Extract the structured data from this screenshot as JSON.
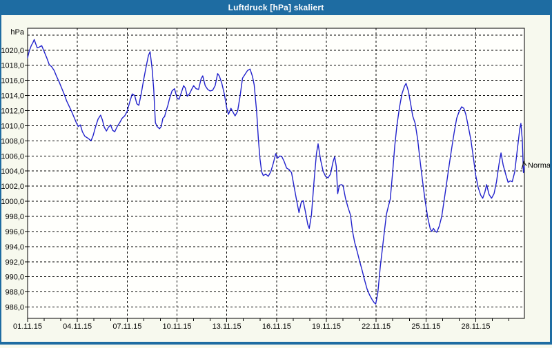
{
  "window": {
    "title": "Luftdruck [hPa] skaliert"
  },
  "colors": {
    "titlebar": "#1e6ca2",
    "window_border": "#1e6ca2",
    "content_bg": "#f7f9ee",
    "plot_bg": "#fffffc",
    "grid": "#000000",
    "axis": "#000000",
    "series_line": "#2222cc",
    "label_text": "#000000"
  },
  "chart_data": {
    "type": "line",
    "title": "Luftdruck [hPa] skaliert",
    "y_axis": {
      "unit_label": "hPa",
      "tick_values": [
        1020,
        1018,
        1016,
        1014,
        1012,
        1010,
        1008,
        1006,
        1004,
        1002,
        1000,
        998,
        996,
        994,
        992,
        990,
        988,
        986
      ],
      "tick_labels": [
        "1020,0",
        "1018,0",
        "1016,0",
        "1014,0",
        "1012,0",
        "1010,0",
        "1008,0",
        "1006,0",
        "1004,0",
        "1002,0",
        "1000,0",
        "998,0",
        "996,0",
        "994,0",
        "992,0",
        "990,0",
        "988,0",
        "986,0"
      ],
      "gridline_values": [
        1022,
        1020,
        1018,
        1016,
        1014,
        1012,
        1010,
        1008,
        1006,
        1004,
        1002,
        1000,
        998,
        996,
        994,
        992,
        990,
        988,
        986
      ],
      "ylim": [
        984.5,
        1022.9
      ],
      "grid": "dashed"
    },
    "x_axis": {
      "tick_label_days": [
        1,
        4,
        7,
        10,
        13,
        16,
        19,
        22,
        25,
        28
      ],
      "tick_labels": [
        "01.11.15",
        "04.11.15",
        "07.11.15",
        "10.11.15",
        "13.11.15",
        "16.11.15",
        "19.11.15",
        "22.11.15",
        "25.11.15",
        "28.11.15"
      ],
      "gridline_days": [
        4,
        7,
        10,
        13,
        16,
        19,
        22,
        25,
        28
      ],
      "minor_tick_every_days": 1,
      "xlim_days": [
        1,
        30.93
      ],
      "grid": "dashed"
    },
    "series": [
      {
        "name": "Normal",
        "end_label": "Normal",
        "color": "#2222cc",
        "points": [
          [
            1.0,
            1019.0
          ],
          [
            1.1,
            1019.9
          ],
          [
            1.22,
            1020.6
          ],
          [
            1.32,
            1021.0
          ],
          [
            1.4,
            1021.4
          ],
          [
            1.48,
            1020.9
          ],
          [
            1.58,
            1020.3
          ],
          [
            1.7,
            1020.4
          ],
          [
            1.85,
            1020.6
          ],
          [
            2.0,
            1019.8
          ],
          [
            2.15,
            1019.0
          ],
          [
            2.3,
            1018.1
          ],
          [
            2.45,
            1017.8
          ],
          [
            2.6,
            1017.3
          ],
          [
            2.75,
            1016.5
          ],
          [
            2.9,
            1015.8
          ],
          [
            3.05,
            1015.0
          ],
          [
            3.2,
            1014.2
          ],
          [
            3.35,
            1013.3
          ],
          [
            3.5,
            1012.6
          ],
          [
            3.65,
            1011.9
          ],
          [
            3.8,
            1011.1
          ],
          [
            3.95,
            1010.3
          ],
          [
            4.05,
            1009.9
          ],
          [
            4.18,
            1010.1
          ],
          [
            4.3,
            1009.2
          ],
          [
            4.45,
            1008.6
          ],
          [
            4.6,
            1008.4
          ],
          [
            4.72,
            1008.2
          ],
          [
            4.82,
            1008.0
          ],
          [
            4.95,
            1008.7
          ],
          [
            5.1,
            1009.9
          ],
          [
            5.25,
            1010.9
          ],
          [
            5.4,
            1011.4
          ],
          [
            5.5,
            1010.8
          ],
          [
            5.62,
            1009.8
          ],
          [
            5.75,
            1009.3
          ],
          [
            5.87,
            1009.8
          ],
          [
            6.0,
            1010.1
          ],
          [
            6.12,
            1009.4
          ],
          [
            6.25,
            1009.2
          ],
          [
            6.4,
            1009.9
          ],
          [
            6.55,
            1010.4
          ],
          [
            6.7,
            1011.0
          ],
          [
            6.85,
            1011.3
          ],
          [
            7.0,
            1011.9
          ],
          [
            7.15,
            1013.1
          ],
          [
            7.3,
            1014.2
          ],
          [
            7.45,
            1014.0
          ],
          [
            7.58,
            1012.9
          ],
          [
            7.7,
            1012.7
          ],
          [
            7.85,
            1014.3
          ],
          [
            8.0,
            1016.2
          ],
          [
            8.15,
            1017.9
          ],
          [
            8.28,
            1019.3
          ],
          [
            8.38,
            1019.8
          ],
          [
            8.5,
            1017.6
          ],
          [
            8.6,
            1014.8
          ],
          [
            8.7,
            1010.4
          ],
          [
            8.8,
            1009.9
          ],
          [
            8.95,
            1009.6
          ],
          [
            9.05,
            1009.9
          ],
          [
            9.15,
            1011.0
          ],
          [
            9.25,
            1011.2
          ],
          [
            9.35,
            1012.0
          ],
          [
            9.45,
            1012.7
          ],
          [
            9.55,
            1013.6
          ],
          [
            9.7,
            1014.6
          ],
          [
            9.85,
            1014.9
          ],
          [
            10.0,
            1013.7
          ],
          [
            10.12,
            1013.5
          ],
          [
            10.25,
            1014.3
          ],
          [
            10.4,
            1015.3
          ],
          [
            10.5,
            1015.0
          ],
          [
            10.62,
            1013.9
          ],
          [
            10.75,
            1014.2
          ],
          [
            10.88,
            1014.8
          ],
          [
            11.0,
            1015.3
          ],
          [
            11.15,
            1014.9
          ],
          [
            11.3,
            1014.8
          ],
          [
            11.45,
            1016.2
          ],
          [
            11.55,
            1016.6
          ],
          [
            11.7,
            1015.3
          ],
          [
            11.85,
            1014.8
          ],
          [
            12.0,
            1014.6
          ],
          [
            12.15,
            1014.7
          ],
          [
            12.3,
            1015.3
          ],
          [
            12.45,
            1016.9
          ],
          [
            12.55,
            1016.6
          ],
          [
            12.7,
            1015.6
          ],
          [
            12.85,
            1014.2
          ],
          [
            13.0,
            1012.3
          ],
          [
            13.1,
            1011.5
          ],
          [
            13.25,
            1012.3
          ],
          [
            13.4,
            1011.7
          ],
          [
            13.5,
            1011.3
          ],
          [
            13.65,
            1011.9
          ],
          [
            13.8,
            1013.9
          ],
          [
            13.95,
            1016.3
          ],
          [
            14.1,
            1016.8
          ],
          [
            14.25,
            1017.3
          ],
          [
            14.4,
            1017.5
          ],
          [
            14.55,
            1016.5
          ],
          [
            14.65,
            1015.4
          ],
          [
            14.8,
            1011.8
          ],
          [
            14.9,
            1008.3
          ],
          [
            15.0,
            1005.6
          ],
          [
            15.1,
            1003.9
          ],
          [
            15.2,
            1003.4
          ],
          [
            15.35,
            1003.6
          ],
          [
            15.5,
            1003.3
          ],
          [
            15.65,
            1003.9
          ],
          [
            15.8,
            1005.0
          ],
          [
            15.95,
            1006.3
          ],
          [
            16.05,
            1005.7
          ],
          [
            16.2,
            1006.0
          ],
          [
            16.32,
            1005.9
          ],
          [
            16.45,
            1005.3
          ],
          [
            16.6,
            1004.4
          ],
          [
            16.75,
            1004.2
          ],
          [
            16.9,
            1003.8
          ],
          [
            17.05,
            1002.0
          ],
          [
            17.2,
            1000.2
          ],
          [
            17.35,
            998.5
          ],
          [
            17.48,
            999.8
          ],
          [
            17.6,
            1000.1
          ],
          [
            17.75,
            998.5
          ],
          [
            17.88,
            996.9
          ],
          [
            17.97,
            996.4
          ],
          [
            18.1,
            998.2
          ],
          [
            18.25,
            1002.5
          ],
          [
            18.4,
            1006.3
          ],
          [
            18.5,
            1007.6
          ],
          [
            18.65,
            1005.5
          ],
          [
            18.8,
            1004.0
          ],
          [
            18.95,
            1003.3
          ],
          [
            19.1,
            1003.1
          ],
          [
            19.25,
            1003.6
          ],
          [
            19.4,
            1005.2
          ],
          [
            19.5,
            1005.9
          ],
          [
            19.6,
            1004.6
          ],
          [
            19.68,
            1001.0
          ],
          [
            19.78,
            1002.1
          ],
          [
            19.9,
            1002.2
          ],
          [
            20.0,
            1002.1
          ],
          [
            20.15,
            1000.4
          ],
          [
            20.3,
            999.2
          ],
          [
            20.45,
            998.2
          ],
          [
            20.58,
            996.0
          ],
          [
            20.7,
            994.6
          ],
          [
            20.85,
            993.4
          ],
          [
            21.0,
            992.1
          ],
          [
            21.15,
            990.9
          ],
          [
            21.3,
            989.6
          ],
          [
            21.45,
            988.4
          ],
          [
            21.6,
            987.6
          ],
          [
            21.75,
            987.0
          ],
          [
            21.87,
            986.6
          ],
          [
            21.97,
            986.4
          ],
          [
            22.1,
            987.9
          ],
          [
            22.25,
            991.4
          ],
          [
            22.4,
            994.2
          ],
          [
            22.5,
            996.1
          ],
          [
            22.62,
            998.3
          ],
          [
            22.72,
            999.2
          ],
          [
            22.85,
            1000.3
          ],
          [
            23.0,
            1004.0
          ],
          [
            23.12,
            1007.3
          ],
          [
            23.25,
            1010.0
          ],
          [
            23.4,
            1012.4
          ],
          [
            23.55,
            1014.2
          ],
          [
            23.7,
            1015.2
          ],
          [
            23.8,
            1015.6
          ],
          [
            23.95,
            1014.5
          ],
          [
            24.1,
            1012.6
          ],
          [
            24.2,
            1011.3
          ],
          [
            24.35,
            1010.3
          ],
          [
            24.5,
            1008.2
          ],
          [
            24.65,
            1005.3
          ],
          [
            24.8,
            1002.6
          ],
          [
            24.95,
            1000.1
          ],
          [
            25.1,
            997.9
          ],
          [
            25.25,
            996.4
          ],
          [
            25.35,
            996.0
          ],
          [
            25.45,
            996.4
          ],
          [
            25.57,
            996.0
          ],
          [
            25.65,
            995.9
          ],
          [
            25.8,
            996.7
          ],
          [
            25.95,
            998.0
          ],
          [
            26.1,
            1000.2
          ],
          [
            26.25,
            1002.5
          ],
          [
            26.4,
            1004.8
          ],
          [
            26.55,
            1007.0
          ],
          [
            26.7,
            1009.1
          ],
          [
            26.85,
            1011.0
          ],
          [
            27.0,
            1011.9
          ],
          [
            27.15,
            1012.5
          ],
          [
            27.28,
            1012.3
          ],
          [
            27.4,
            1011.5
          ],
          [
            27.55,
            1009.9
          ],
          [
            27.7,
            1008.2
          ],
          [
            27.85,
            1005.9
          ],
          [
            28.0,
            1003.4
          ],
          [
            28.15,
            1001.8
          ],
          [
            28.3,
            1000.8
          ],
          [
            28.42,
            1000.4
          ],
          [
            28.55,
            1001.2
          ],
          [
            28.65,
            1002.2
          ],
          [
            28.8,
            1000.9
          ],
          [
            28.95,
            1000.4
          ],
          [
            29.1,
            1001.0
          ],
          [
            29.25,
            1002.6
          ],
          [
            29.4,
            1004.9
          ],
          [
            29.52,
            1006.4
          ],
          [
            29.65,
            1004.8
          ],
          [
            29.8,
            1003.6
          ],
          [
            29.95,
            1002.5
          ],
          [
            30.07,
            1002.7
          ],
          [
            30.2,
            1002.6
          ],
          [
            30.35,
            1003.9
          ],
          [
            30.5,
            1006.8
          ],
          [
            30.65,
            1009.6
          ],
          [
            30.72,
            1010.3
          ],
          [
            30.8,
            1008.2
          ],
          [
            30.87,
            1003.8
          ],
          [
            30.93,
            1004.6
          ]
        ]
      }
    ],
    "legend_position": "end-of-line-right"
  }
}
